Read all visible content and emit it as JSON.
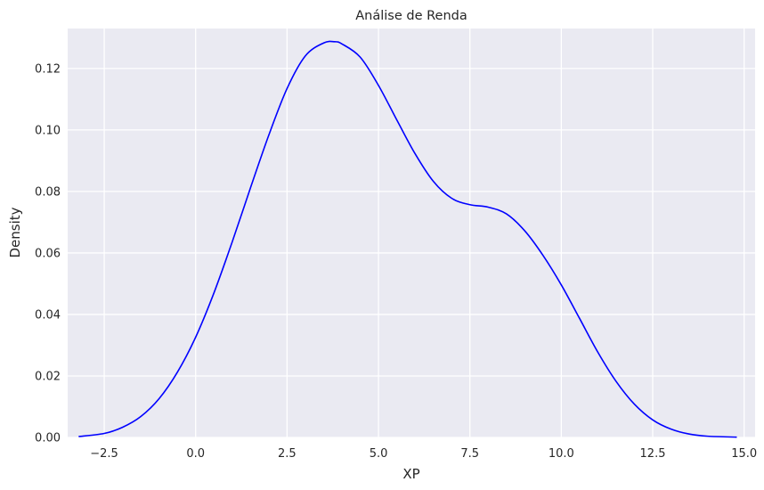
{
  "chart_data": {
    "type": "line",
    "title": "Análise de Renda",
    "xlabel": "XP",
    "ylabel": "Density",
    "xlim": [
      -3.5,
      15.3
    ],
    "ylim": [
      0,
      0.133
    ],
    "grid": true,
    "x_ticks": [
      -2.5,
      0.0,
      2.5,
      5.0,
      7.5,
      10.0,
      12.5,
      15.0
    ],
    "x_tick_labels": [
      "−2.5",
      "0.0",
      "2.5",
      "5.0",
      "7.5",
      "10.0",
      "12.5",
      "15.0"
    ],
    "y_ticks": [
      0.0,
      0.02,
      0.04,
      0.06,
      0.08,
      0.1,
      0.12
    ],
    "y_tick_labels": [
      "0.00",
      "0.02",
      "0.04",
      "0.06",
      "0.08",
      "0.10",
      "0.12"
    ],
    "colors": {
      "line": "#0000ff",
      "plot_bg": "#eaeaf2",
      "grid": "#ffffff"
    },
    "series": [
      {
        "x": [
          -3.2,
          -2.5,
          -2.0,
          -1.5,
          -1.0,
          -0.5,
          0.0,
          0.5,
          1.0,
          1.5,
          2.0,
          2.5,
          3.0,
          3.5,
          3.8,
          4.0,
          4.5,
          5.0,
          5.5,
          6.0,
          6.5,
          7.0,
          7.5,
          8.0,
          8.5,
          9.0,
          9.5,
          10.0,
          10.5,
          11.0,
          11.5,
          12.0,
          12.5,
          13.0,
          13.5,
          14.0,
          14.8
        ],
        "y": [
          0.0003,
          0.0013,
          0.0033,
          0.0068,
          0.0126,
          0.0212,
          0.0326,
          0.047,
          0.0636,
          0.0812,
          0.0983,
          0.1135,
          0.1241,
          0.1283,
          0.1287,
          0.128,
          0.1237,
          0.1145,
          0.1033,
          0.0923,
          0.0833,
          0.0778,
          0.0757,
          0.0749,
          0.0727,
          0.0672,
          0.0592,
          0.0496,
          0.0387,
          0.0277,
          0.0182,
          0.0108,
          0.0057,
          0.0027,
          0.0011,
          0.0004,
          0.0001
        ]
      }
    ]
  }
}
